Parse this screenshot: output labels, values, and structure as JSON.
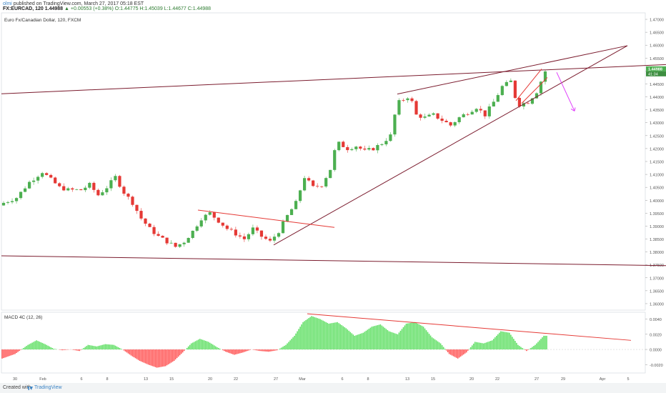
{
  "header": {
    "user": "olmi",
    "published": "published on TradingView.com, March 27, 2017 05:18 EST",
    "symbol": "FX:EURCAD, 120",
    "last": "1.44988",
    "change": "▲ +0.00553 (+0.38%)",
    "ohlc": "O:1.44775 H:1.45039 L:1.44677 C:1.44988"
  },
  "chart_title": "Euro Fx/Canadian Dollar, 120, FXCM",
  "price_tag": "1.44988",
  "time_tag": "41:34",
  "macd_label": "MACD 4C (12, 26)",
  "footer": {
    "created": "Created with",
    "brand": "TradingView"
  },
  "colors": {
    "up": "#4caf50",
    "down": "#e53935",
    "trend": "#7b1c2e",
    "red_line": "#e53935",
    "arrow": "#e040fb",
    "macd_up": "#66e06a",
    "macd_down": "#ff5a5a"
  },
  "chart_data": [
    {
      "type": "candlestick",
      "title": "Euro Fx/Canadian Dollar, 120, FXCM",
      "y_axis_ticks": [
        "1.47000",
        "1.46500",
        "1.46000",
        "1.45500",
        "1.45000",
        "1.44500",
        "1.44000",
        "1.43500",
        "1.43000",
        "1.42500",
        "1.42000",
        "1.41500",
        "1.41000",
        "1.40500",
        "1.40000",
        "1.39500",
        "1.39000",
        "1.38500",
        "1.38000",
        "1.37500",
        "1.37000",
        "1.36500",
        "1.36000"
      ],
      "ylim": [
        1.3575,
        1.4725
      ],
      "x_axis_ticks": [
        "30",
        "Feb",
        "6",
        "8",
        "13",
        "15",
        "20",
        "22",
        "27",
        "Mar",
        "6",
        "8",
        "13",
        "15",
        "20",
        "22",
        "27",
        "29",
        "Apr",
        "5"
      ],
      "close_path": [
        [
          0,
          1.399
        ],
        [
          3,
          1.401
        ],
        [
          6,
          1.407
        ],
        [
          9,
          1.411
        ],
        [
          11,
          1.408
        ],
        [
          13,
          1.405
        ],
        [
          15,
          1.404
        ],
        [
          18,
          1.404
        ],
        [
          20,
          1.406
        ],
        [
          22,
          1.402
        ],
        [
          24,
          1.405
        ],
        [
          26,
          1.409
        ],
        [
          28,
          1.403
        ],
        [
          30,
          1.399
        ],
        [
          32,
          1.393
        ],
        [
          34,
          1.389
        ],
        [
          36,
          1.386
        ],
        [
          38,
          1.384
        ],
        [
          40,
          1.382
        ],
        [
          42,
          1.384
        ],
        [
          44,
          1.388
        ],
        [
          46,
          1.393
        ],
        [
          48,
          1.395
        ],
        [
          50,
          1.392
        ],
        [
          52,
          1.389
        ],
        [
          54,
          1.387
        ],
        [
          56,
          1.385
        ],
        [
          58,
          1.389
        ],
        [
          60,
          1.386
        ],
        [
          62,
          1.384
        ],
        [
          64,
          1.388
        ],
        [
          66,
          1.394
        ],
        [
          68,
          1.399
        ],
        [
          69,
          1.404
        ],
        [
          70,
          1.409
        ],
        [
          72,
          1.405
        ],
        [
          74,
          1.406
        ],
        [
          76,
          1.412
        ],
        [
          77,
          1.419
        ],
        [
          78,
          1.422
        ],
        [
          80,
          1.42
        ],
        [
          82,
          1.421
        ],
        [
          84,
          1.419
        ],
        [
          86,
          1.42
        ],
        [
          88,
          1.422
        ],
        [
          90,
          1.425
        ],
        [
          91,
          1.433
        ],
        [
          92,
          1.438
        ],
        [
          94,
          1.44
        ],
        [
          95,
          1.438
        ],
        [
          96,
          1.433
        ],
        [
          98,
          1.432
        ],
        [
          100,
          1.433
        ],
        [
          102,
          1.431
        ],
        [
          104,
          1.429
        ],
        [
          106,
          1.432
        ],
        [
          108,
          1.434
        ],
        [
          110,
          1.436
        ],
        [
          112,
          1.433
        ],
        [
          114,
          1.438
        ],
        [
          116,
          1.444
        ],
        [
          118,
          1.446
        ],
        [
          119,
          1.44
        ],
        [
          120,
          1.437
        ],
        [
          122,
          1.438
        ],
        [
          124,
          1.442
        ],
        [
          125,
          1.446
        ],
        [
          126,
          1.4499
        ]
      ],
      "x_count": 127
    },
    {
      "type": "bar",
      "title": "MACD 4C (12, 26)",
      "y_axis_ticks": [
        "0.0040",
        "0.0020",
        "0.0000",
        "-0.0020"
      ],
      "ylim": [
        -0.0031,
        0.0049
      ],
      "x_count": 127,
      "values_path": [
        [
          0,
          -0.0012
        ],
        [
          3,
          -0.0006
        ],
        [
          6,
          0.0006
        ],
        [
          8,
          0.0012
        ],
        [
          10,
          0.0007
        ],
        [
          12,
          0.0001
        ],
        [
          14,
          -0.0001
        ],
        [
          16,
          0.0
        ],
        [
          18,
          -0.0002
        ],
        [
          20,
          0.0006
        ],
        [
          22,
          0.0004
        ],
        [
          24,
          0.0007
        ],
        [
          26,
          0.0006
        ],
        [
          28,
          0.0
        ],
        [
          30,
          -0.0008
        ],
        [
          32,
          -0.0015
        ],
        [
          34,
          -0.002
        ],
        [
          36,
          -0.0024
        ],
        [
          38,
          -0.0022
        ],
        [
          40,
          -0.0015
        ],
        [
          42,
          -0.0004
        ],
        [
          44,
          0.0008
        ],
        [
          46,
          0.0014
        ],
        [
          48,
          0.001
        ],
        [
          50,
          0.0003
        ],
        [
          52,
          -0.0003
        ],
        [
          54,
          -0.0007
        ],
        [
          56,
          -0.0004
        ],
        [
          58,
          0.0
        ],
        [
          60,
          -0.0002
        ],
        [
          62,
          -0.0003
        ],
        [
          64,
          -0.0001
        ],
        [
          66,
          0.0006
        ],
        [
          68,
          0.0018
        ],
        [
          70,
          0.0036
        ],
        [
          72,
          0.0044
        ],
        [
          74,
          0.004
        ],
        [
          76,
          0.0034
        ],
        [
          78,
          0.0036
        ],
        [
          80,
          0.0028
        ],
        [
          82,
          0.0018
        ],
        [
          84,
          0.0022
        ],
        [
          86,
          0.003
        ],
        [
          88,
          0.0033
        ],
        [
          90,
          0.0024
        ],
        [
          92,
          0.002
        ],
        [
          94,
          0.0034
        ],
        [
          96,
          0.0036
        ],
        [
          98,
          0.003
        ],
        [
          100,
          0.0016
        ],
        [
          102,
          0.0008
        ],
        [
          104,
          -0.0006
        ],
        [
          106,
          -0.0012
        ],
        [
          108,
          -0.0004
        ],
        [
          110,
          0.001
        ],
        [
          112,
          0.0008
        ],
        [
          114,
          0.0012
        ],
        [
          116,
          0.0024
        ],
        [
          118,
          0.0022
        ],
        [
          120,
          0.0006
        ],
        [
          122,
          -0.0002
        ],
        [
          124,
          0.0006
        ],
        [
          126,
          0.0018
        ]
      ]
    }
  ]
}
